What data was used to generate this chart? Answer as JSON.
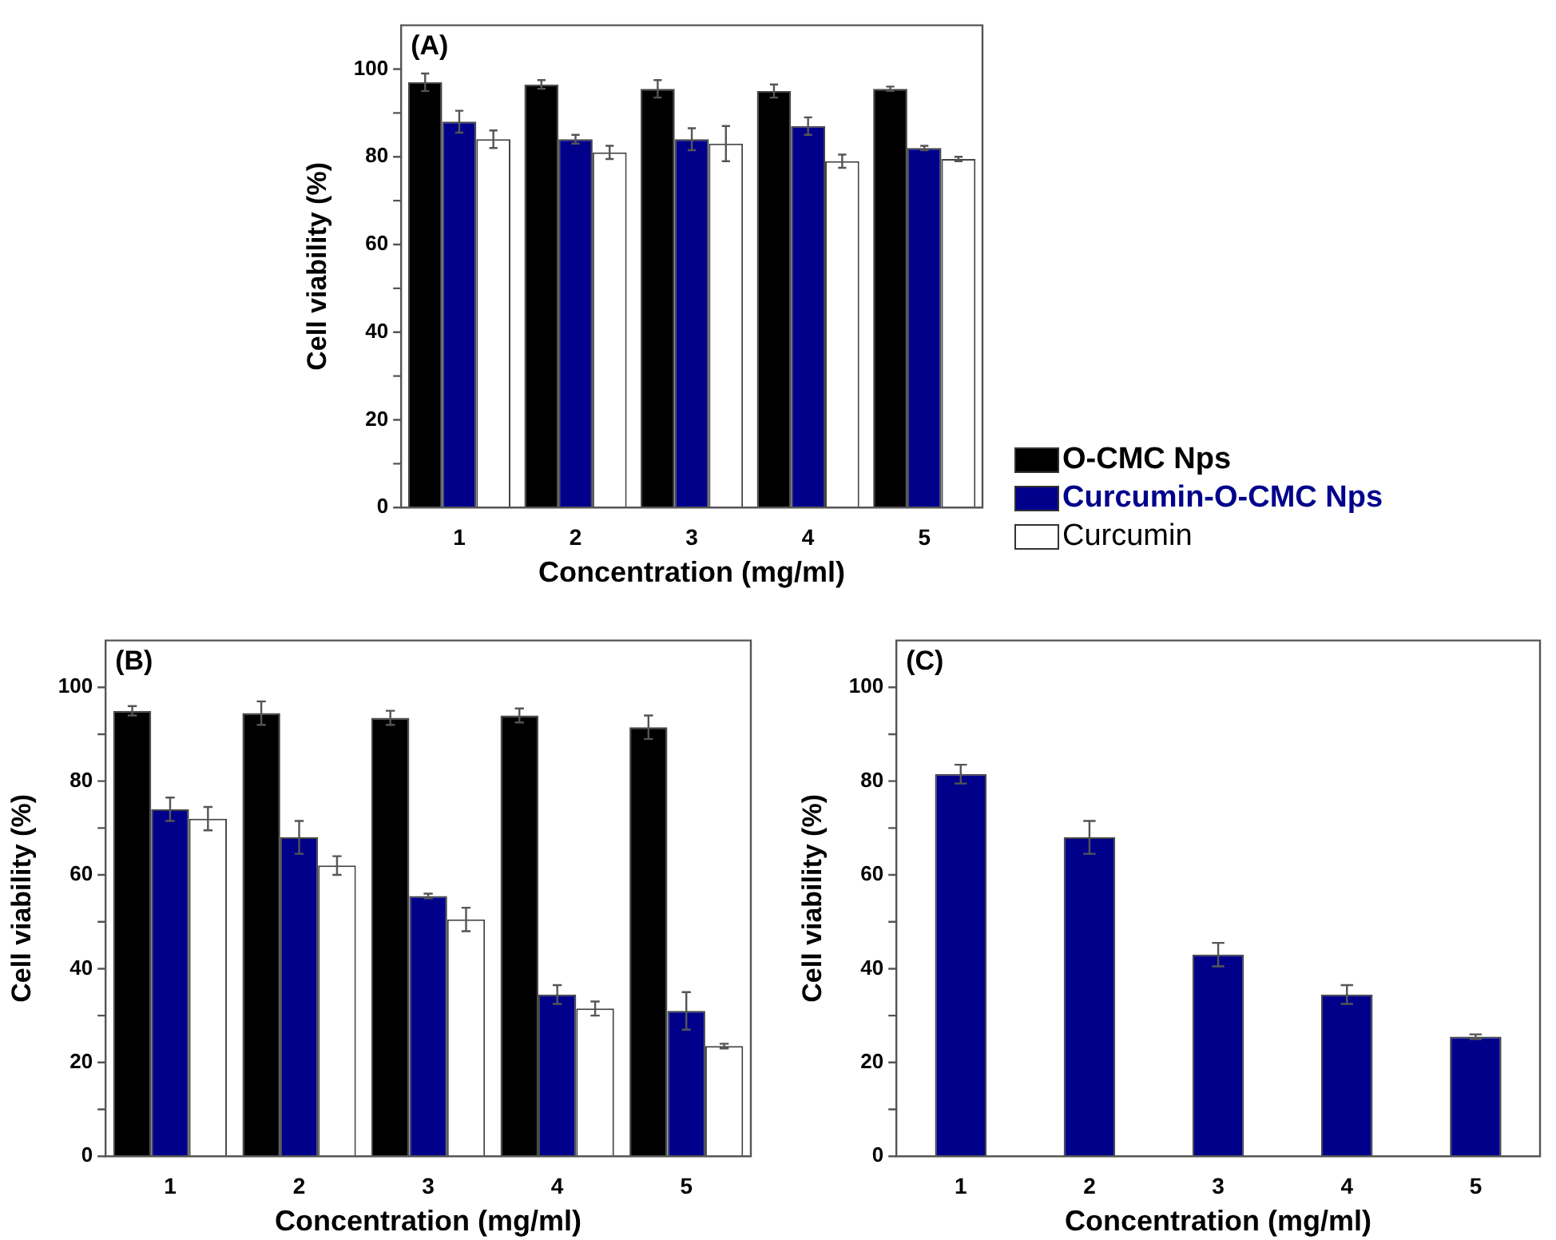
{
  "chart_data": [
    {
      "type": "bar",
      "title": "(A)",
      "xlabel": "Concentration (mg/ml)",
      "ylabel": "Cell viability (%)",
      "categories": [
        "1",
        "2",
        "3",
        "4",
        "5"
      ],
      "series": [
        {
          "name": "O-CMC Nps",
          "color": "#000000",
          "values": [
            97,
            96.5,
            95.5,
            95,
            95.5
          ],
          "errors": [
            2,
            1,
            2,
            1.5,
            0.5
          ]
        },
        {
          "name": "Curcumin-O-CMC Nps",
          "color": "#00008b",
          "values": [
            88,
            84,
            84,
            87,
            82
          ],
          "errors": [
            2.5,
            1,
            2.5,
            2,
            0.5
          ]
        },
        {
          "name": "Curcumin",
          "color": "#ffffff",
          "values": [
            84,
            81,
            83,
            79,
            79.5
          ],
          "errors": [
            2,
            1.5,
            4,
            1.5,
            0.5
          ]
        }
      ],
      "ylim": [
        0,
        110
      ],
      "yticks": [
        0,
        {
          "value": 10,
          "label": null
        },
        20,
        {
          "value": 30,
          "label": null
        },
        40,
        {
          "value": 50,
          "label": null
        },
        60,
        {
          "value": 70,
          "label": null
        },
        80,
        {
          "value": 90,
          "label": null
        },
        100
      ],
      "legend": "right"
    },
    {
      "type": "bar",
      "title": "(B)",
      "xlabel": "Concentration (mg/ml)",
      "ylabel": "Cell viability (%)",
      "categories": [
        "1",
        "2",
        "3",
        "4",
        "5"
      ],
      "series": [
        {
          "color": "#000000",
          "values": [
            95,
            94.5,
            93.5,
            94,
            91.5
          ],
          "errors": [
            1,
            2.5,
            1.5,
            1.5,
            2.5
          ]
        },
        {
          "color": "#00008b",
          "values": [
            74,
            68,
            55.5,
            34.5,
            31
          ],
          "errors": [
            2.5,
            3.5,
            0.5,
            2,
            4
          ]
        },
        {
          "color": "#ffffff",
          "values": [
            72,
            62,
            50.5,
            31.5,
            23.5
          ],
          "errors": [
            2.5,
            2,
            2.5,
            1.5,
            0.5
          ]
        }
      ],
      "ylim": [
        0,
        110
      ],
      "yticks": [
        0,
        {
          "value": 10,
          "label": null
        },
        20,
        {
          "value": 30,
          "label": null
        },
        40,
        {
          "value": 50,
          "label": null
        },
        60,
        {
          "value": 70,
          "label": null
        },
        80,
        {
          "value": 90,
          "label": null
        },
        100
      ]
    },
    {
      "type": "bar",
      "title": "(C)",
      "xlabel": "Concentration (mg/ml)",
      "ylabel": "Cell viability (%)",
      "categories": [
        "1",
        "2",
        "3",
        "4",
        "5"
      ],
      "series": [
        {
          "color": "#00008b",
          "values": [
            81.5,
            68,
            43,
            34.5,
            25.5
          ],
          "errors": [
            2,
            3.5,
            2.5,
            2,
            0.5
          ]
        }
      ],
      "ylim": [
        0,
        110
      ],
      "yticks": [
        0,
        {
          "value": 10,
          "label": null
        },
        20,
        {
          "value": 30,
          "label": null
        },
        40,
        {
          "value": 50,
          "label": null
        },
        60,
        {
          "value": 70,
          "label": null
        },
        80,
        {
          "value": 90,
          "label": null
        },
        100
      ]
    }
  ]
}
